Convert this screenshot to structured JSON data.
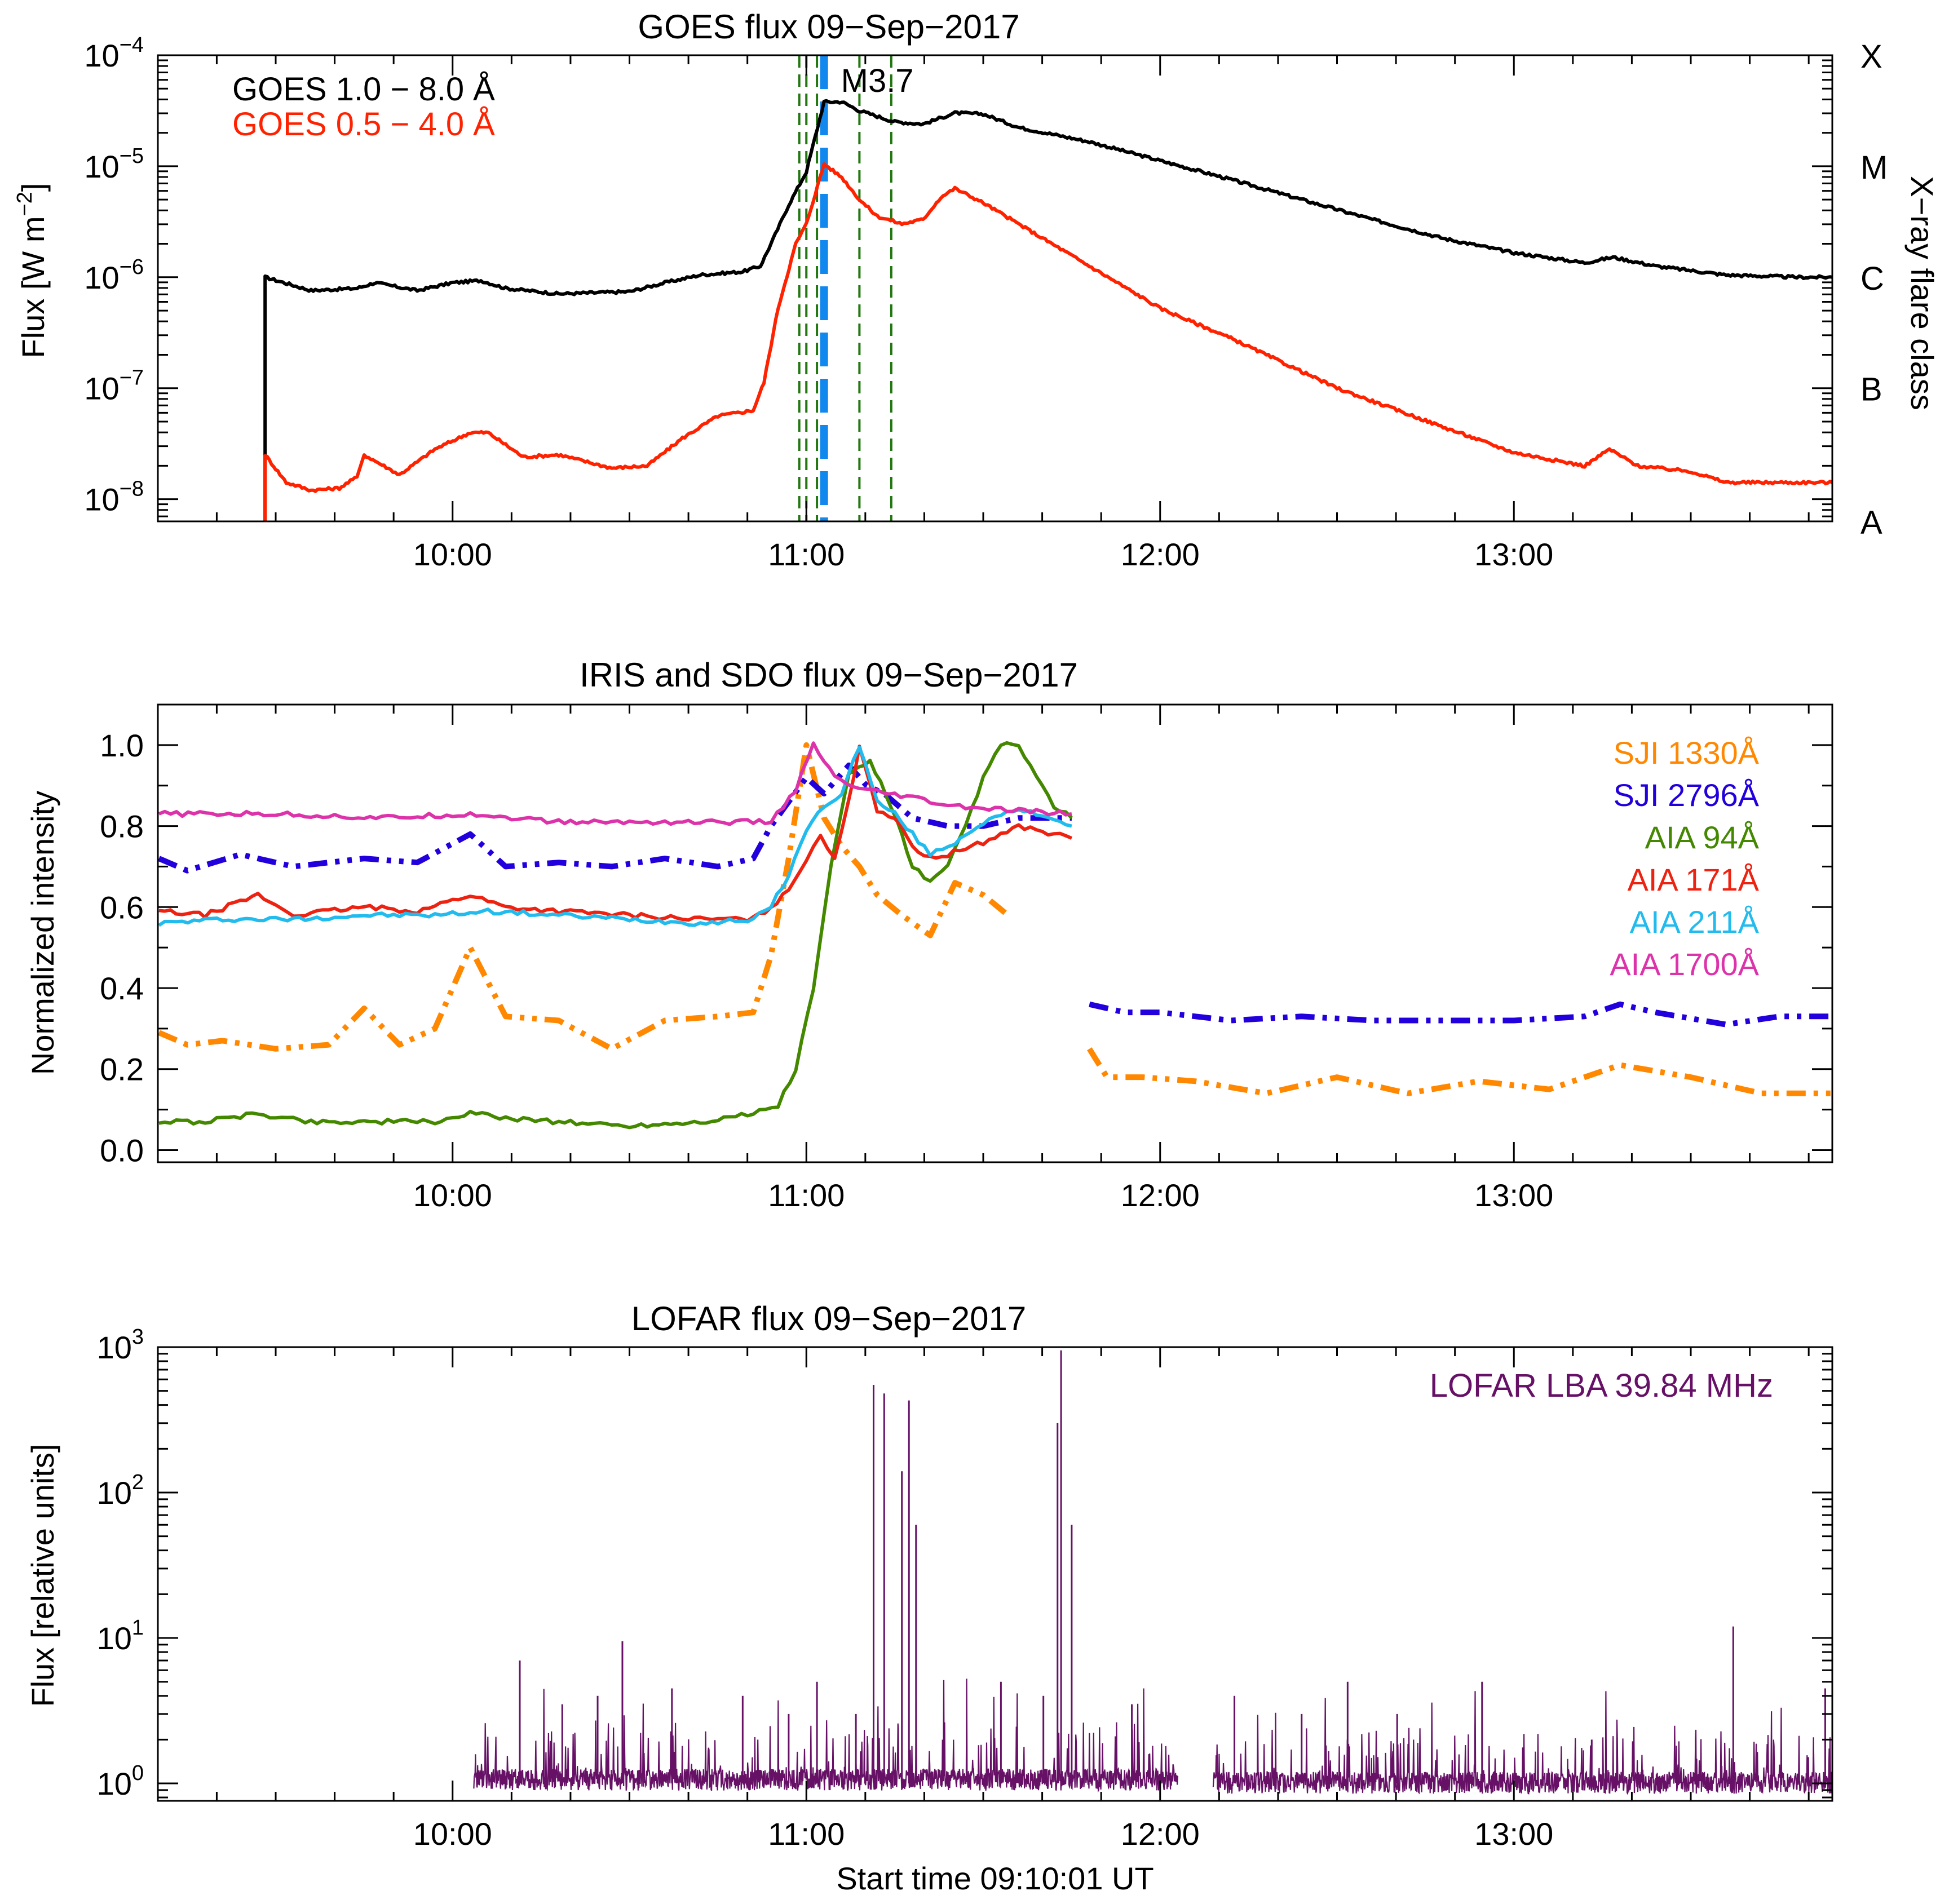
{
  "chart_data": [
    {
      "type": "line",
      "title": "GOES flux 09−Sep−2017",
      "ylabel_main": "Flux [W m",
      "ylabel_sup": "−2",
      "ylabel_end": "]",
      "yscale": "log",
      "ylim_exp": [
        -8.2,
        -4
      ],
      "ytick_exps": [
        "−8",
        "−7",
        "−6",
        "−5",
        "−4"
      ],
      "ytick_values": [
        -8,
        -7,
        -6,
        -5,
        -4
      ],
      "y2label": "X−ray flare class",
      "y2_classes": [
        {
          "label": "A",
          "exp": -8.2
        },
        {
          "label": "B",
          "exp": -7
        },
        {
          "label": "C",
          "exp": -6
        },
        {
          "label": "M",
          "exp": -5
        },
        {
          "label": "X",
          "exp": -4
        }
      ],
      "xlim_hours": [
        9.1669,
        13.9
      ],
      "xticks": [
        {
          "label": "10:00",
          "value": 10
        },
        {
          "label": "11:00",
          "value": 11
        },
        {
          "label": "12:00",
          "value": 12
        },
        {
          "label": "13:00",
          "value": 13
        }
      ],
      "flare_label": "M3.7",
      "flare_peak_hours": 11.05,
      "marker_lines_hours": [
        10.98,
        11.0,
        11.03,
        11.15,
        11.24
      ],
      "series": [
        {
          "name": "GOES 1.0 − 8.0 Å",
          "color": "#000000",
          "x": [
            9.47,
            9.47,
            9.6,
            9.73,
            9.78,
            9.9,
            10.0,
            10.08,
            10.15,
            10.3,
            10.5,
            10.6,
            10.7,
            10.82,
            10.87,
            10.9,
            10.95,
            11.0,
            11.05,
            11.1,
            11.15,
            11.25,
            11.33,
            11.42,
            11.5,
            11.6,
            11.8,
            12.0,
            12.2,
            12.4,
            12.6,
            12.8,
            13.0,
            13.2,
            13.28,
            13.4,
            13.6,
            13.8,
            13.9
          ],
          "y_log10": [
            -8.2,
            -6.0,
            -6.12,
            -6.1,
            -6.05,
            -6.12,
            -6.05,
            -6.03,
            -6.1,
            -6.15,
            -6.13,
            -6.05,
            -5.98,
            -5.95,
            -5.9,
            -5.7,
            -5.35,
            -5.05,
            -4.42,
            -4.42,
            -4.5,
            -4.6,
            -4.62,
            -4.52,
            -4.53,
            -4.65,
            -4.78,
            -4.95,
            -5.12,
            -5.3,
            -5.48,
            -5.65,
            -5.78,
            -5.87,
            -5.82,
            -5.9,
            -5.98,
            -6.0,
            -6.0
          ]
        },
        {
          "name": "GOES 0.5 − 4.0 Å",
          "color": "#ff2200",
          "x": [
            9.47,
            9.47,
            9.53,
            9.6,
            9.68,
            9.73,
            9.75,
            9.85,
            9.95,
            10.05,
            10.1,
            10.2,
            10.3,
            10.45,
            10.55,
            10.65,
            10.75,
            10.85,
            10.88,
            10.92,
            10.97,
            11.0,
            11.05,
            11.1,
            11.15,
            11.2,
            11.27,
            11.33,
            11.38,
            11.42,
            11.5,
            11.6,
            11.8,
            12.0,
            12.2,
            12.5,
            12.8,
            13.0,
            13.2,
            13.27,
            13.35,
            13.5,
            13.6,
            13.8,
            13.9
          ],
          "y_log10": [
            -8.2,
            -7.6,
            -7.85,
            -7.92,
            -7.9,
            -7.8,
            -7.6,
            -7.78,
            -7.55,
            -7.4,
            -7.4,
            -7.62,
            -7.6,
            -7.72,
            -7.7,
            -7.45,
            -7.25,
            -7.2,
            -6.95,
            -6.28,
            -5.7,
            -5.52,
            -4.98,
            -5.1,
            -5.3,
            -5.45,
            -5.52,
            -5.48,
            -5.28,
            -5.2,
            -5.33,
            -5.52,
            -5.9,
            -6.28,
            -6.55,
            -7.0,
            -7.35,
            -7.58,
            -7.7,
            -7.55,
            -7.7,
            -7.75,
            -7.85,
            -7.85,
            -7.85
          ]
        }
      ]
    },
    {
      "type": "line",
      "title": "IRIS and SDO flux 09−Sep−2017",
      "ylabel": "Normalized intensity",
      "ylim": [
        -0.03,
        1.1
      ],
      "yticks": [
        "0.0",
        "0.2",
        "0.4",
        "0.6",
        "0.8",
        "1.0"
      ],
      "ytick_values": [
        0,
        0.2,
        0.4,
        0.6,
        0.8,
        1.0
      ],
      "xlim_hours": [
        9.1669,
        13.9
      ],
      "xticks": [
        {
          "label": "10:00",
          "value": 10
        },
        {
          "label": "11:00",
          "value": 11
        },
        {
          "label": "12:00",
          "value": 12
        },
        {
          "label": "13:00",
          "value": 13
        }
      ],
      "series": [
        {
          "name": "SJI 1330Å",
          "color": "#ff8800",
          "style": "dashdot",
          "segments": [
            {
              "x": [
                9.17,
                9.25,
                9.35,
                9.5,
                9.65,
                9.75,
                9.85,
                9.95,
                10.05,
                10.15,
                10.3,
                10.45,
                10.6,
                10.75,
                10.85,
                10.9,
                10.95,
                11.0,
                11.05,
                11.1,
                11.15,
                11.2,
                11.27,
                11.35,
                11.42,
                11.5,
                11.57
              ],
              "y": [
                0.29,
                0.26,
                0.27,
                0.25,
                0.26,
                0.35,
                0.26,
                0.3,
                0.5,
                0.33,
                0.32,
                0.25,
                0.32,
                0.33,
                0.34,
                0.48,
                0.72,
                1.0,
                0.82,
                0.75,
                0.7,
                0.63,
                0.58,
                0.53,
                0.66,
                0.63,
                0.58
              ]
            },
            {
              "x": [
                11.8,
                11.85,
                11.95,
                12.1,
                12.3,
                12.5,
                12.7,
                12.9,
                13.1,
                13.3,
                13.5,
                13.7,
                13.9
              ],
              "y": [
                0.25,
                0.18,
                0.18,
                0.17,
                0.14,
                0.18,
                0.14,
                0.17,
                0.15,
                0.21,
                0.18,
                0.14,
                0.14
              ]
            }
          ]
        },
        {
          "name": "SJI 2796Å",
          "color": "#2200dd",
          "style": "dashdot",
          "segments": [
            {
              "x": [
                9.17,
                9.25,
                9.4,
                9.55,
                9.75,
                9.9,
                10.05,
                10.15,
                10.3,
                10.45,
                10.6,
                10.75,
                10.85,
                10.9,
                10.95,
                11.0,
                11.05,
                11.12,
                11.17,
                11.22,
                11.3,
                11.4,
                11.5,
                11.6,
                11.75
              ],
              "y": [
                0.72,
                0.69,
                0.73,
                0.7,
                0.72,
                0.71,
                0.78,
                0.7,
                0.71,
                0.7,
                0.72,
                0.7,
                0.72,
                0.8,
                0.86,
                0.92,
                0.88,
                0.95,
                0.9,
                0.88,
                0.82,
                0.8,
                0.8,
                0.82,
                0.82
              ]
            },
            {
              "x": [
                11.8,
                11.9,
                12.0,
                12.2,
                12.4,
                12.6,
                12.8,
                13.0,
                13.2,
                13.3,
                13.4,
                13.6,
                13.75,
                13.9
              ],
              "y": [
                0.36,
                0.34,
                0.34,
                0.32,
                0.33,
                0.32,
                0.32,
                0.32,
                0.33,
                0.36,
                0.34,
                0.31,
                0.33,
                0.33
              ]
            }
          ]
        },
        {
          "name": "AIA 94Å",
          "color": "#448800",
          "style": "solid",
          "segments": [
            {
              "x": [
                9.17,
                9.3,
                9.45,
                9.6,
                9.8,
                9.95,
                10.05,
                10.15,
                10.3,
                10.5,
                10.7,
                10.85,
                10.92,
                10.97,
                11.02,
                11.07,
                11.12,
                11.18,
                11.24,
                11.3,
                11.35,
                11.4,
                11.45,
                11.5,
                11.55,
                11.6,
                11.65,
                11.7,
                11.75
              ],
              "y": [
                0.07,
                0.07,
                0.09,
                0.07,
                0.07,
                0.07,
                0.09,
                0.08,
                0.07,
                0.06,
                0.07,
                0.09,
                0.11,
                0.2,
                0.4,
                0.7,
                0.93,
                0.96,
                0.85,
                0.7,
                0.66,
                0.7,
                0.8,
                0.92,
                1.0,
                1.0,
                0.92,
                0.85,
                0.82
              ]
            }
          ]
        },
        {
          "name": "AIA 171Å",
          "color": "#ee2211",
          "style": "solid",
          "segments": [
            {
              "x": [
                9.17,
                9.3,
                9.45,
                9.55,
                9.75,
                9.9,
                10.05,
                10.15,
                10.3,
                10.5,
                10.7,
                10.85,
                10.9,
                10.95,
                11.0,
                11.04,
                11.08,
                11.12,
                11.15,
                11.2,
                11.25,
                11.3,
                11.35,
                11.4,
                11.5,
                11.6,
                11.7,
                11.75
              ],
              "y": [
                0.59,
                0.58,
                0.63,
                0.58,
                0.6,
                0.59,
                0.63,
                0.6,
                0.59,
                0.58,
                0.57,
                0.57,
                0.6,
                0.64,
                0.72,
                0.78,
                0.72,
                0.86,
                1.0,
                0.84,
                0.82,
                0.75,
                0.72,
                0.73,
                0.76,
                0.8,
                0.78,
                0.77
              ]
            }
          ]
        },
        {
          "name": "AIA 211Å",
          "color": "#22bbee",
          "style": "solid",
          "segments": [
            {
              "x": [
                9.17,
                9.35,
                9.55,
                9.75,
                9.95,
                10.1,
                10.3,
                10.5,
                10.7,
                10.85,
                10.9,
                10.95,
                11.0,
                11.05,
                11.1,
                11.15,
                11.2,
                11.25,
                11.3,
                11.35,
                11.42,
                11.5,
                11.6,
                11.7,
                11.75
              ],
              "y": [
                0.56,
                0.57,
                0.57,
                0.58,
                0.58,
                0.59,
                0.58,
                0.57,
                0.56,
                0.57,
                0.6,
                0.68,
                0.79,
                0.85,
                0.88,
                1.0,
                0.86,
                0.83,
                0.78,
                0.73,
                0.76,
                0.81,
                0.84,
                0.82,
                0.8
              ]
            }
          ]
        },
        {
          "name": "AIA 1700Å",
          "color": "#dd33aa",
          "style": "solid",
          "segments": [
            {
              "x": [
                9.17,
                9.5,
                9.8,
                10.05,
                10.3,
                10.6,
                10.9,
                10.97,
                11.02,
                11.08,
                11.15,
                11.3,
                11.4,
                11.55,
                11.75
              ],
              "y": [
                0.83,
                0.83,
                0.82,
                0.83,
                0.81,
                0.81,
                0.81,
                0.89,
                1.0,
                0.92,
                0.89,
                0.87,
                0.85,
                0.84,
                0.83
              ]
            }
          ]
        }
      ]
    },
    {
      "type": "line",
      "title": "LOFAR flux 09−Sep−2017",
      "ylabel": "Flux [relative units]",
      "yscale": "log",
      "ylim_exp": [
        -0.12,
        3
      ],
      "ytick_exps": [
        "0",
        "1",
        "2",
        "3"
      ],
      "ytick_values": [
        0,
        1,
        2,
        3
      ],
      "xlabel": "Start time 09:10:01 UT",
      "xlim_hours": [
        9.1669,
        13.9
      ],
      "xticks": [
        {
          "label": "10:00",
          "value": 10
        },
        {
          "label": "11:00",
          "value": 11
        },
        {
          "label": "12:00",
          "value": 12
        },
        {
          "label": "13:00",
          "value": 13
        }
      ],
      "series": [
        {
          "name": "LOFAR LBA 39.84 MHz",
          "color": "#661166",
          "segments": [
            {
              "start": 10.06,
              "end": 12.05,
              "baseline": 1.05
            },
            {
              "start": 12.15,
              "end": 13.9,
              "baseline": 1.0
            }
          ],
          "spikes": [
            {
              "x": 10.19,
              "v": 7
            },
            {
              "x": 10.31,
              "v": 3.5
            },
            {
              "x": 10.41,
              "v": 4
            },
            {
              "x": 10.48,
              "v": 9.5
            },
            {
              "x": 10.62,
              "v": 4.5
            },
            {
              "x": 10.82,
              "v": 4
            },
            {
              "x": 10.95,
              "v": 3
            },
            {
              "x": 11.03,
              "v": 5
            },
            {
              "x": 11.14,
              "v": 3
            },
            {
              "x": 11.19,
              "v": 550
            },
            {
              "x": 11.22,
              "v": 480
            },
            {
              "x": 11.27,
              "v": 140
            },
            {
              "x": 11.29,
              "v": 430
            },
            {
              "x": 11.31,
              "v": 60
            },
            {
              "x": 11.55,
              "v": 5
            },
            {
              "x": 11.67,
              "v": 4
            },
            {
              "x": 11.71,
              "v": 300
            },
            {
              "x": 11.72,
              "v": 950
            },
            {
              "x": 11.75,
              "v": 60
            },
            {
              "x": 11.92,
              "v": 3.5
            },
            {
              "x": 12.21,
              "v": 4
            },
            {
              "x": 12.4,
              "v": 3
            },
            {
              "x": 12.53,
              "v": 5
            },
            {
              "x": 12.67,
              "v": 3
            },
            {
              "x": 12.91,
              "v": 5
            },
            {
              "x": 13.22,
              "v": 2
            },
            {
              "x": 13.62,
              "v": 12
            },
            {
              "x": 13.88,
              "v": 4.5
            }
          ]
        }
      ]
    }
  ]
}
